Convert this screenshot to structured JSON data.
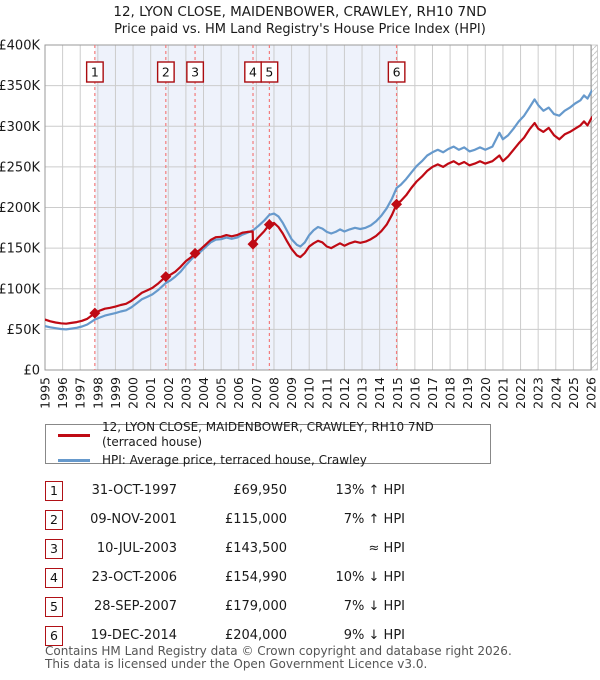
{
  "header": {
    "title": "12, LYON CLOSE, MAIDENBOWER, CRAWLEY, RH10 7ND",
    "subtitle": "Price paid vs. HM Land Registry's House Price Index (HPI)"
  },
  "legend": {
    "property": "12, LYON CLOSE, MAIDENBOWER, CRAWLEY, RH10 7ND (terraced house)",
    "hpi": "HPI: Average price, terraced house, Crawley"
  },
  "chart_data": {
    "type": "line",
    "title": "Price paid vs. HM Land Registry's House Price Index (HPI)",
    "xlabel": "",
    "ylabel": "",
    "x_range": [
      1995,
      2026
    ],
    "ylim": [
      0,
      400000
    ],
    "y_tick_values": [
      0,
      50000,
      100000,
      150000,
      200000,
      250000,
      300000,
      350000,
      400000
    ],
    "y_tick_labels": [
      "£0",
      "£50K",
      "£100K",
      "£150K",
      "£200K",
      "£250K",
      "£300K",
      "£350K",
      "£400K"
    ],
    "grid": true,
    "legend_position": "bottom",
    "ownership_band": [
      1997.83,
      2014.96
    ],
    "colors": {
      "price_line": "#bf0a14",
      "hpi_line": "#6699cc",
      "band": "#eef2fb",
      "grid": "#cccccc",
      "sale_dash": "#f37c7c",
      "marker_box_border": "#aa0c10",
      "plot_border": "#999999",
      "hatch": "#c8c8c8"
    },
    "sales": [
      {
        "n": "1",
        "x": 1997.83,
        "price": 69950
      },
      {
        "n": "2",
        "x": 2001.86,
        "price": 115000
      },
      {
        "n": "3",
        "x": 2003.52,
        "price": 143500
      },
      {
        "n": "4",
        "x": 2006.81,
        "price": 154990
      },
      {
        "n": "5",
        "x": 2007.74,
        "price": 179000
      },
      {
        "n": "6",
        "x": 2014.96,
        "price": 204000
      }
    ],
    "series": [
      {
        "name": "HPI: Average price, terraced house, Crawley",
        "color": "#6699cc",
        "points": [
          [
            1995.0,
            54000
          ],
          [
            1995.3,
            52500
          ],
          [
            1995.6,
            51500
          ],
          [
            1995.9,
            50500
          ],
          [
            1996.2,
            50000
          ],
          [
            1996.5,
            51000
          ],
          [
            1996.8,
            52000
          ],
          [
            1997.1,
            53500
          ],
          [
            1997.4,
            56000
          ],
          [
            1997.83,
            62000
          ],
          [
            1998.1,
            64500
          ],
          [
            1998.4,
            67000
          ],
          [
            1998.7,
            68500
          ],
          [
            1999.0,
            70000
          ],
          [
            1999.3,
            72000
          ],
          [
            1999.6,
            73500
          ],
          [
            1999.9,
            77000
          ],
          [
            2000.2,
            82000
          ],
          [
            2000.5,
            87000
          ],
          [
            2000.8,
            90000
          ],
          [
            2001.1,
            93000
          ],
          [
            2001.4,
            98000
          ],
          [
            2001.86,
            107000
          ],
          [
            2002.1,
            110000
          ],
          [
            2002.4,
            115000
          ],
          [
            2002.7,
            121000
          ],
          [
            2003.0,
            129000
          ],
          [
            2003.3,
            136000
          ],
          [
            2003.52,
            141000
          ],
          [
            2003.8,
            145000
          ],
          [
            2004.1,
            151000
          ],
          [
            2004.4,
            157000
          ],
          [
            2004.7,
            160500
          ],
          [
            2005.0,
            161000
          ],
          [
            2005.3,
            163000
          ],
          [
            2005.6,
            161500
          ],
          [
            2005.9,
            163000
          ],
          [
            2006.2,
            166500
          ],
          [
            2006.5,
            169000
          ],
          [
            2006.81,
            172000
          ],
          [
            2007.1,
            177000
          ],
          [
            2007.45,
            184000
          ],
          [
            2007.74,
            191000
          ],
          [
            2008.0,
            192500
          ],
          [
            2008.25,
            189000
          ],
          [
            2008.5,
            181000
          ],
          [
            2008.75,
            171000
          ],
          [
            2009.0,
            161000
          ],
          [
            2009.3,
            154000
          ],
          [
            2009.5,
            152000
          ],
          [
            2009.75,
            157000
          ],
          [
            2010.0,
            166000
          ],
          [
            2010.25,
            172000
          ],
          [
            2010.5,
            176000
          ],
          [
            2010.75,
            174000
          ],
          [
            2011.0,
            170000
          ],
          [
            2011.25,
            168000
          ],
          [
            2011.5,
            170000
          ],
          [
            2011.75,
            173000
          ],
          [
            2012.0,
            170500
          ],
          [
            2012.3,
            173000
          ],
          [
            2012.6,
            175000
          ],
          [
            2012.9,
            173500
          ],
          [
            2013.2,
            175000
          ],
          [
            2013.5,
            178000
          ],
          [
            2013.8,
            183000
          ],
          [
            2014.1,
            190000
          ],
          [
            2014.4,
            199000
          ],
          [
            2014.7,
            211000
          ],
          [
            2014.96,
            224000
          ],
          [
            2015.2,
            228000
          ],
          [
            2015.5,
            235000
          ],
          [
            2015.8,
            243000
          ],
          [
            2016.1,
            251000
          ],
          [
            2016.4,
            257000
          ],
          [
            2016.7,
            264000
          ],
          [
            2017.0,
            268000
          ],
          [
            2017.3,
            271000
          ],
          [
            2017.6,
            268000
          ],
          [
            2017.9,
            272000
          ],
          [
            2018.2,
            275000
          ],
          [
            2018.5,
            271000
          ],
          [
            2018.8,
            274000
          ],
          [
            2019.1,
            269000
          ],
          [
            2019.4,
            271000
          ],
          [
            2019.7,
            274000
          ],
          [
            2020.0,
            271000
          ],
          [
            2020.4,
            275000
          ],
          [
            2020.8,
            292000
          ],
          [
            2021.0,
            284000
          ],
          [
            2021.3,
            289000
          ],
          [
            2021.6,
            297000
          ],
          [
            2021.9,
            306000
          ],
          [
            2022.2,
            313000
          ],
          [
            2022.5,
            323000
          ],
          [
            2022.8,
            333000
          ],
          [
            2023.0,
            326000
          ],
          [
            2023.3,
            319000
          ],
          [
            2023.6,
            323000
          ],
          [
            2023.9,
            315000
          ],
          [
            2024.2,
            313000
          ],
          [
            2024.5,
            319000
          ],
          [
            2024.8,
            323000
          ],
          [
            2025.1,
            328000
          ],
          [
            2025.4,
            332000
          ],
          [
            2025.6,
            338000
          ],
          [
            2025.8,
            334000
          ],
          [
            2026.05,
            344000
          ]
        ]
      },
      {
        "name": "12, LYON CLOSE, MAIDENBOWER, CRAWLEY, RH10 7ND (terraced house)",
        "color": "#bf0a14",
        "points": [
          [
            1995.0,
            62000
          ],
          [
            1995.3,
            60000
          ],
          [
            1995.6,
            58500
          ],
          [
            1995.9,
            57500
          ],
          [
            1996.2,
            57000
          ],
          [
            1996.5,
            58000
          ],
          [
            1996.8,
            59000
          ],
          [
            1997.1,
            60500
          ],
          [
            1997.4,
            63000
          ],
          [
            1997.83,
            69950
          ],
          [
            1998.1,
            73000
          ],
          [
            1998.4,
            75500
          ],
          [
            1998.7,
            76500
          ],
          [
            1999.0,
            78000
          ],
          [
            1999.3,
            80000
          ],
          [
            1999.6,
            81500
          ],
          [
            1999.9,
            85000
          ],
          [
            2000.2,
            90000
          ],
          [
            2000.5,
            95000
          ],
          [
            2000.8,
            98000
          ],
          [
            2001.1,
            101000
          ],
          [
            2001.4,
            106000
          ],
          [
            2001.86,
            115000
          ],
          [
            2002.1,
            117000
          ],
          [
            2002.4,
            121000
          ],
          [
            2002.7,
            127000
          ],
          [
            2003.0,
            134000
          ],
          [
            2003.3,
            139000
          ],
          [
            2003.52,
            143500
          ],
          [
            2003.8,
            148000
          ],
          [
            2004.1,
            154000
          ],
          [
            2004.4,
            160000
          ],
          [
            2004.7,
            163500
          ],
          [
            2005.0,
            164000
          ],
          [
            2005.3,
            166000
          ],
          [
            2005.6,
            164500
          ],
          [
            2005.9,
            166000
          ],
          [
            2006.2,
            169000
          ],
          [
            2006.5,
            170000
          ],
          [
            2006.79,
            170500
          ],
          [
            2006.81,
            154990
          ],
          [
            2007.1,
            163000
          ],
          [
            2007.45,
            171000
          ],
          [
            2007.74,
            179000
          ],
          [
            2008.0,
            181000
          ],
          [
            2008.25,
            176000
          ],
          [
            2008.5,
            168000
          ],
          [
            2008.75,
            158000
          ],
          [
            2009.0,
            149000
          ],
          [
            2009.3,
            141000
          ],
          [
            2009.5,
            139000
          ],
          [
            2009.75,
            144000
          ],
          [
            2010.0,
            152000
          ],
          [
            2010.25,
            156000
          ],
          [
            2010.5,
            159000
          ],
          [
            2010.75,
            157000
          ],
          [
            2011.0,
            152000
          ],
          [
            2011.25,
            150000
          ],
          [
            2011.5,
            153000
          ],
          [
            2011.75,
            156000
          ],
          [
            2012.0,
            153000
          ],
          [
            2012.3,
            156000
          ],
          [
            2012.6,
            158000
          ],
          [
            2012.9,
            156500
          ],
          [
            2013.2,
            158000
          ],
          [
            2013.5,
            161000
          ],
          [
            2013.8,
            165000
          ],
          [
            2014.1,
            171000
          ],
          [
            2014.4,
            179000
          ],
          [
            2014.7,
            191000
          ],
          [
            2014.96,
            204000
          ],
          [
            2015.2,
            208000
          ],
          [
            2015.5,
            215000
          ],
          [
            2015.8,
            224000
          ],
          [
            2016.1,
            232000
          ],
          [
            2016.4,
            238000
          ],
          [
            2016.7,
            245000
          ],
          [
            2017.0,
            250000
          ],
          [
            2017.3,
            253000
          ],
          [
            2017.6,
            250000
          ],
          [
            2017.9,
            254000
          ],
          [
            2018.2,
            257000
          ],
          [
            2018.5,
            253000
          ],
          [
            2018.8,
            256000
          ],
          [
            2019.1,
            252000
          ],
          [
            2019.4,
            254000
          ],
          [
            2019.7,
            257000
          ],
          [
            2020.0,
            254000
          ],
          [
            2020.4,
            257000
          ],
          [
            2020.8,
            264000
          ],
          [
            2021.0,
            257000
          ],
          [
            2021.3,
            263000
          ],
          [
            2021.6,
            271000
          ],
          [
            2021.9,
            279000
          ],
          [
            2022.2,
            286000
          ],
          [
            2022.5,
            296000
          ],
          [
            2022.8,
            304000
          ],
          [
            2023.0,
            297000
          ],
          [
            2023.3,
            293000
          ],
          [
            2023.6,
            298000
          ],
          [
            2023.9,
            289000
          ],
          [
            2024.2,
            284000
          ],
          [
            2024.5,
            290000
          ],
          [
            2024.8,
            293000
          ],
          [
            2025.1,
            297000
          ],
          [
            2025.4,
            301000
          ],
          [
            2025.6,
            306000
          ],
          [
            2025.8,
            301000
          ],
          [
            2026.05,
            311000
          ]
        ]
      }
    ]
  },
  "table": {
    "rows": [
      {
        "num": "1",
        "date": "31-OCT-1997",
        "price": "£69,950",
        "hpi": "13% ↑ HPI"
      },
      {
        "num": "2",
        "date": "09-NOV-2001",
        "price": "£115,000",
        "hpi": "7% ↑ HPI"
      },
      {
        "num": "3",
        "date": "10-JUL-2003",
        "price": "£143,500",
        "hpi": "≈ HPI"
      },
      {
        "num": "4",
        "date": "23-OCT-2006",
        "price": "£154,990",
        "hpi": "10% ↓ HPI"
      },
      {
        "num": "5",
        "date": "28-SEP-2007",
        "price": "£179,000",
        "hpi": "7% ↓ HPI"
      },
      {
        "num": "6",
        "date": "19-DEC-2014",
        "price": "£204,000",
        "hpi": "9% ↓ HPI"
      }
    ]
  },
  "footer": {
    "line1": "Contains HM Land Registry data © Crown copyright and database right 2026.",
    "line2": "This data is licensed under the Open Government Licence v3.0."
  }
}
